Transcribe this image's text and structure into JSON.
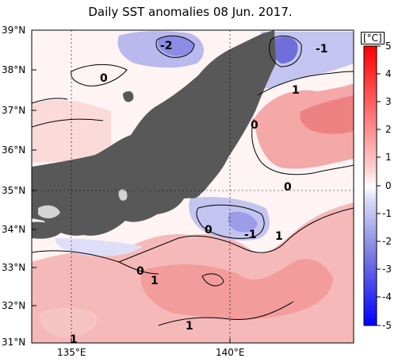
{
  "title": "Daily SST anomalies 08 Jun. 2017.",
  "latitude_labels": [
    "39°N",
    "38°N",
    "37°N",
    "36°N",
    "35°N",
    "34°N",
    "33°N",
    "32°N",
    "31°N"
  ],
  "longitude_labels": [
    "135°E",
    "140°E"
  ],
  "colorbar": {
    "unit": "[°C]",
    "ticks": [
      "5",
      "4",
      "3",
      "2",
      "1",
      "0",
      "-1",
      "-2",
      "-3",
      "-4",
      "-5"
    ],
    "colors": [
      "#ff0000",
      "#ff3030",
      "#ff6060",
      "#ff8f8f",
      "#ffb5b5",
      "#ffd8d8",
      "#fff0f0",
      "#ffffff",
      "#eeeefc",
      "#d4d4f7",
      "#b5b5f0",
      "#9595e8",
      "#7474df",
      "#5050d5",
      "#2525c9",
      "#0000ff"
    ]
  },
  "contour_labels": [
    {
      "text": "-2",
      "id": "label-minus2-north"
    },
    {
      "text": "-1",
      "id": "label-minus1-northeast"
    },
    {
      "text": "0",
      "id": "label-zero-northwest"
    },
    {
      "text": "1",
      "id": "label-one-east"
    },
    {
      "text": "0",
      "id": "label-zero-center"
    },
    {
      "text": "0",
      "id": "label-zero-east"
    },
    {
      "text": "0",
      "id": "label-zero-south"
    },
    {
      "text": "-1",
      "id": "label-minus1-south"
    },
    {
      "text": "1",
      "id": "label-one-south"
    },
    {
      "text": "0",
      "id": "label-zero-west"
    },
    {
      "text": "1",
      "id": "label-one-west"
    },
    {
      "text": "1",
      "id": "label-one-southcenter"
    },
    {
      "text": "1",
      "id": "label-one-southwest"
    }
  ],
  "colors": {
    "land": "#585858",
    "lake": "#d4d4d4",
    "frame": "#000000",
    "warm": "#f6b9b9",
    "warm_light": "#fbdada",
    "cool": "#c4c4f0",
    "cool_dark": "#8c8ce4"
  }
}
